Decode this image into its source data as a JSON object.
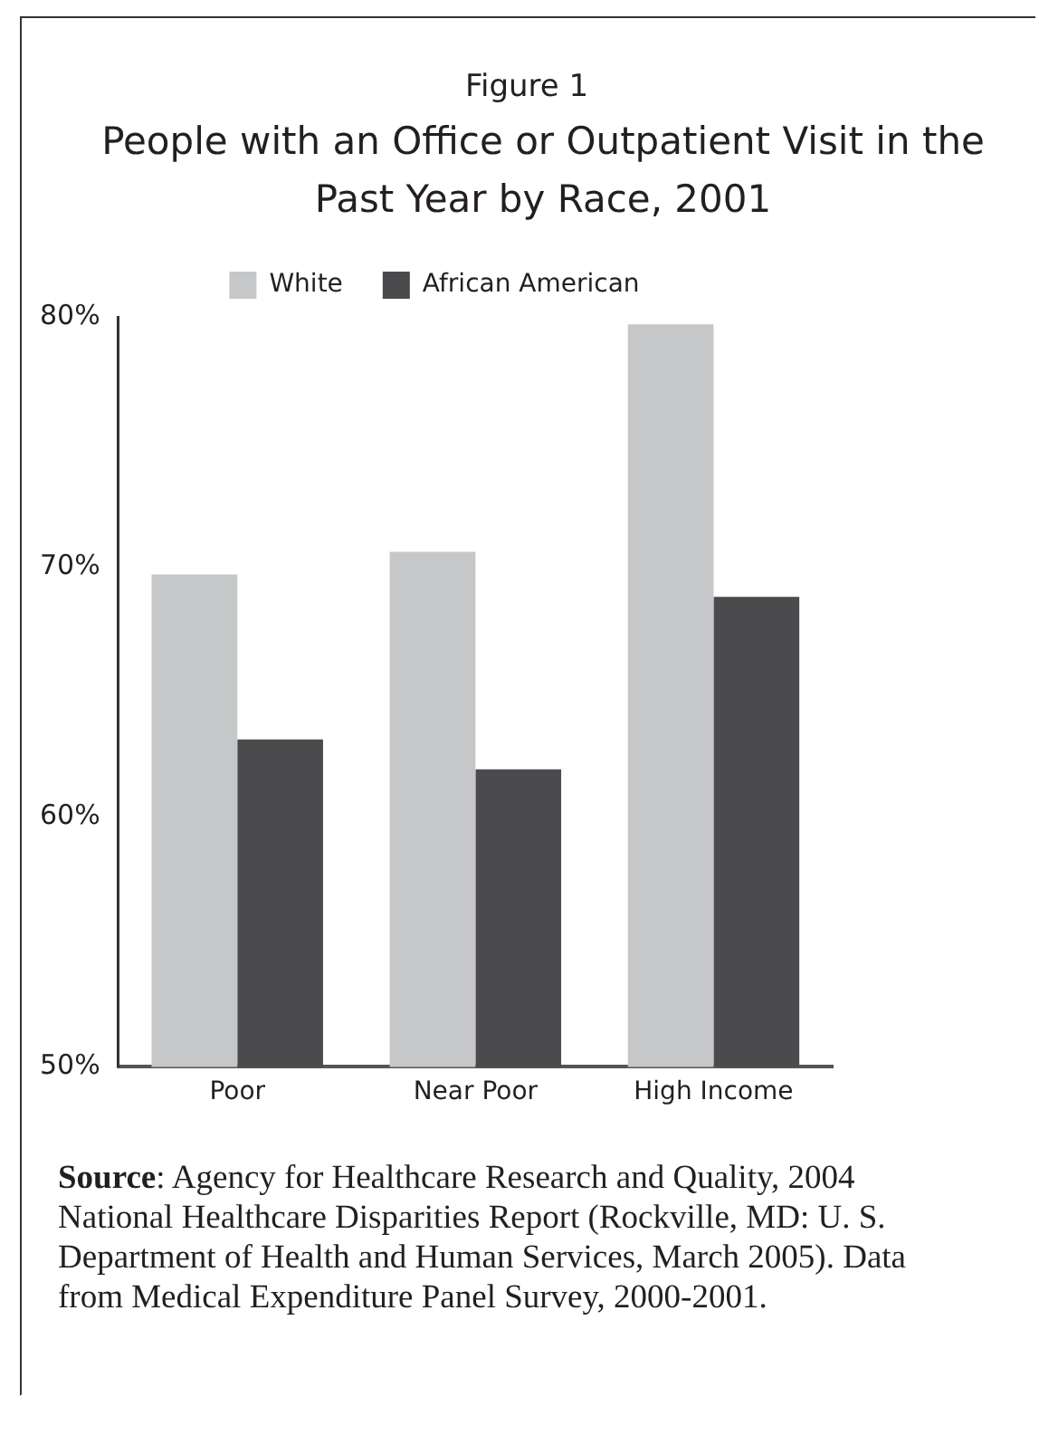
{
  "chart_data": {
    "type": "bar",
    "subtitle": "Figure 1",
    "title": "People with an Office or Outpatient Visit in the Past Year by Race, 2001",
    "categories": [
      "Poor",
      "Near Poor",
      "High Income"
    ],
    "series": [
      {
        "name": "White",
        "color": "#c6c7c9",
        "values": [
          69.7,
          70.6,
          79.7
        ]
      },
      {
        "name": "African American",
        "color": "#4b4b4d",
        "values": [
          63.1,
          61.9,
          68.8
        ]
      }
    ],
    "ylim": [
      50,
      80
    ],
    "yticks": [
      {
        "value": 50,
        "label": "50%"
      },
      {
        "value": 60,
        "label": "60%"
      },
      {
        "value": 70,
        "label": "70%"
      },
      {
        "value": 80,
        "label": "80%"
      }
    ],
    "grid": false,
    "legend": "top",
    "annotations": [
      "Source: Agency for Healthcare Research and Quality, 2004 National Healthcare Disparities Report (Rockville, MD: U. S. Department of Health and Human Services, March 2005). Data from Medical Expenditure Panel Survey, 2000-2001."
    ]
  }
}
